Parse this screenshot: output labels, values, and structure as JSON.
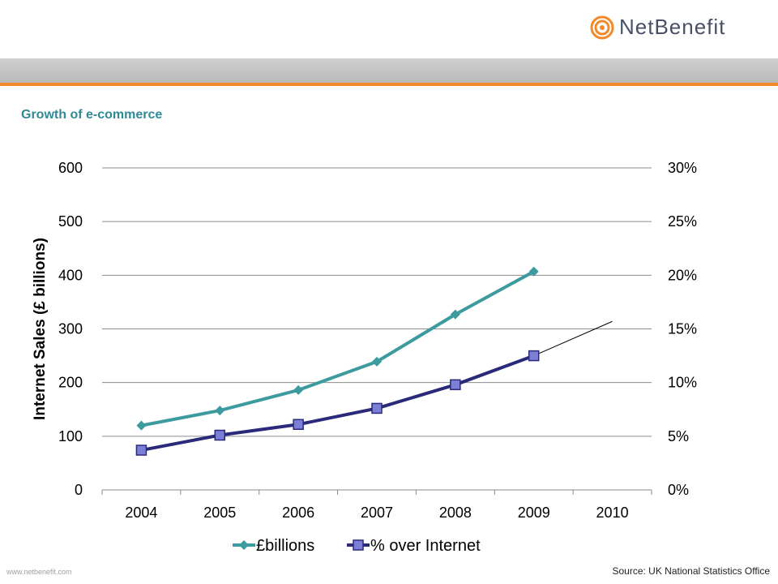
{
  "brand": {
    "name": "NetBenefit",
    "website": "www.netbenefit.com",
    "accent_color": "#f08a2a",
    "text_color": "#4a4f68"
  },
  "slide": {
    "subtitle": "Growth of e-commerce",
    "source": "Source: UK National Statistics Office"
  },
  "chart_data": {
    "type": "line",
    "categories": [
      "2004",
      "2005",
      "2006",
      "2007",
      "2008",
      "2009",
      "2010"
    ],
    "ylabel": "Internet Sales (£ billions)",
    "ylim": [
      0,
      600
    ],
    "y_ticks": [
      0,
      100,
      200,
      300,
      400,
      500,
      600
    ],
    "y2lim": [
      0,
      0.3
    ],
    "y2_ticks": [
      "0%",
      "5%",
      "10%",
      "15%",
      "20%",
      "25%",
      "30%"
    ],
    "grid": true,
    "legend_position": "bottom",
    "series": [
      {
        "name": "£billions",
        "axis": "left",
        "color": "#3d9b9f",
        "marker": "diamond",
        "values": [
          120,
          148,
          186,
          239,
          327,
          407,
          null
        ]
      },
      {
        "name": "% over Internet",
        "axis": "right",
        "color": "#2b2a7a",
        "marker": "square",
        "values": [
          0.037,
          0.051,
          0.061,
          0.076,
          0.098,
          0.125,
          null
        ]
      }
    ],
    "trendline": {
      "series": "% over Internet",
      "color": "#000000",
      "x_to": "2010",
      "end_value": 0.157
    }
  }
}
